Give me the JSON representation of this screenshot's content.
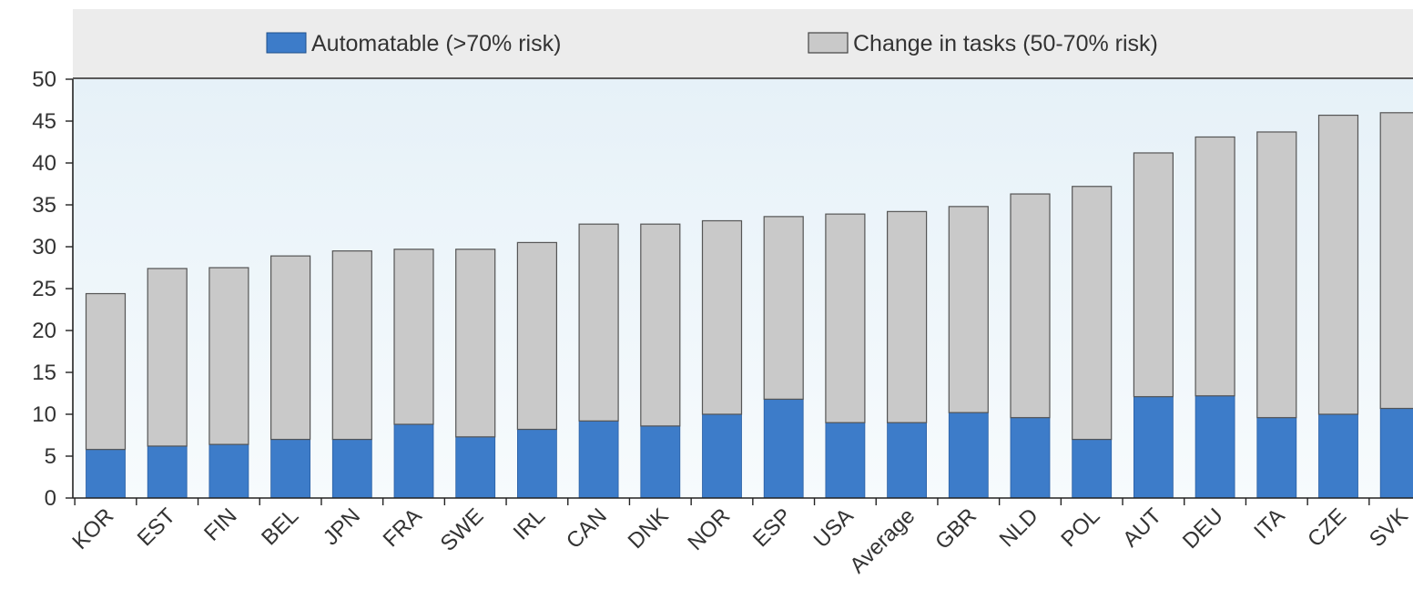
{
  "chart_data": {
    "type": "bar",
    "stacked": true,
    "title": "",
    "xlabel": "",
    "ylabel": "",
    "ylim": [
      0,
      50
    ],
    "yticks": [
      0,
      5,
      10,
      15,
      20,
      25,
      30,
      35,
      40,
      45,
      50
    ],
    "grid": false,
    "legend_position": "top",
    "categories": [
      "KOR",
      "EST",
      "FIN",
      "BEL",
      "JPN",
      "FRA",
      "SWE",
      "IRL",
      "CAN",
      "DNK",
      "NOR",
      "ESP",
      "USA",
      "Average",
      "GBR",
      "NLD",
      "POL",
      "AUT",
      "DEU",
      "ITA",
      "CZE",
      "SVK"
    ],
    "series": [
      {
        "name": "Automatable (>70% risk)",
        "color": "#3d7cc9",
        "values": [
          5.8,
          6.2,
          6.4,
          7.0,
          7.0,
          8.8,
          7.3,
          8.2,
          9.2,
          8.6,
          10.0,
          11.8,
          9.0,
          9.0,
          10.2,
          9.6,
          7.0,
          12.1,
          12.2,
          9.6,
          10.0,
          10.7
        ]
      },
      {
        "name": "Change in tasks (50-70% risk)",
        "color": "#c9c9c9",
        "values": [
          18.6,
          21.2,
          21.1,
          21.9,
          22.5,
          20.9,
          22.4,
          22.3,
          23.5,
          24.1,
          23.1,
          21.8,
          24.9,
          25.2,
          24.6,
          26.7,
          30.2,
          29.1,
          30.9,
          34.1,
          35.7,
          35.3
        ]
      }
    ]
  }
}
